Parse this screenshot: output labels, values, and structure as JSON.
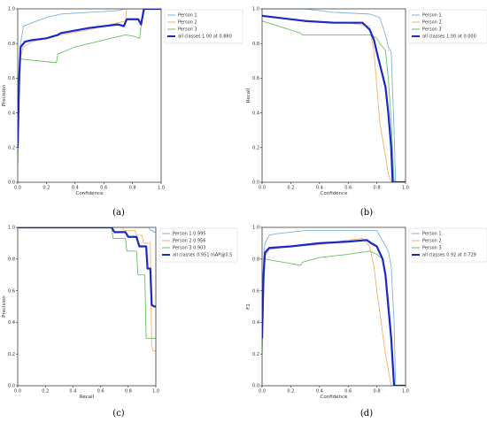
{
  "colors": {
    "person1": "#7fb2dc",
    "person2": "#f5b26b",
    "person3": "#6abf6a",
    "all": "#1a28c8"
  },
  "chart_data": [
    {
      "id": "a",
      "caption": "(a)",
      "type": "line",
      "xlabel": "Confidence",
      "ylabel": "Precision",
      "xlim": [
        0,
        1
      ],
      "ylim": [
        0,
        1
      ],
      "xticks": [
        "0.0",
        "0.2",
        "0.4",
        "0.6",
        "0.8",
        "1.0"
      ],
      "yticks": [
        "0.0",
        "0.2",
        "0.4",
        "0.6",
        "0.8",
        "1.0"
      ],
      "grid": false,
      "legend_position": "top-right",
      "series": [
        {
          "name": "Person 1",
          "color_key": "person1",
          "x": [
            0,
            0.01,
            0.02,
            0.04,
            0.1,
            0.2,
            0.3,
            0.5,
            0.7,
            0.75,
            0.76,
            0.9,
            1.0
          ],
          "y": [
            0.2,
            0.6,
            0.8,
            0.9,
            0.92,
            0.95,
            0.97,
            0.98,
            0.99,
            1.0,
            1.0,
            1.0,
            1.0
          ]
        },
        {
          "name": "Person 2",
          "color_key": "person2",
          "x": [
            0,
            0.01,
            0.02,
            0.04,
            0.1,
            0.2,
            0.3,
            0.5,
            0.7,
            0.75,
            0.76,
            0.9,
            1.0
          ],
          "y": [
            0.2,
            0.55,
            0.72,
            0.78,
            0.81,
            0.83,
            0.85,
            0.88,
            0.92,
            0.93,
            1.0,
            1.0,
            1.0
          ]
        },
        {
          "name": "Person 3",
          "color_key": "person3",
          "x": [
            0,
            0.01,
            0.02,
            0.27,
            0.28,
            0.4,
            0.6,
            0.75,
            0.82,
            0.85,
            0.86,
            0.88,
            0.9,
            1.0
          ],
          "y": [
            0.1,
            0.5,
            0.71,
            0.69,
            0.74,
            0.78,
            0.82,
            0.85,
            0.84,
            0.83,
            0.9,
            1.0,
            1.0,
            1.0
          ]
        },
        {
          "name": "all classes 1.00 at 0.880",
          "color_key": "all",
          "bold": true,
          "x": [
            0,
            0.01,
            0.02,
            0.05,
            0.1,
            0.2,
            0.28,
            0.3,
            0.5,
            0.7,
            0.74,
            0.76,
            0.84,
            0.86,
            0.88,
            1.0
          ],
          "y": [
            0.2,
            0.6,
            0.78,
            0.81,
            0.82,
            0.83,
            0.85,
            0.86,
            0.89,
            0.91,
            0.9,
            0.94,
            0.94,
            0.91,
            1.0,
            1.0
          ]
        }
      ]
    },
    {
      "id": "b",
      "caption": "(b)",
      "type": "line",
      "xlabel": "Confidence",
      "ylabel": "Recall",
      "xlim": [
        0,
        1
      ],
      "ylim": [
        0,
        1
      ],
      "xticks": [
        "0.0",
        "0.2",
        "0.4",
        "0.6",
        "0.8",
        "1.0"
      ],
      "yticks": [
        "0.0",
        "0.2",
        "0.4",
        "0.6",
        "0.8",
        "1.0"
      ],
      "grid": false,
      "legend_position": "top-right",
      "series": [
        {
          "name": "Person 1",
          "color_key": "person1",
          "x": [
            0,
            0.3,
            0.5,
            0.75,
            0.82,
            0.86,
            0.88,
            0.9,
            0.92,
            0.93,
            1.0
          ],
          "y": [
            1.0,
            1.0,
            0.98,
            0.97,
            0.95,
            0.85,
            0.78,
            0.75,
            0.3,
            0.0,
            0.0
          ],
          "comment": "points are approximate"
        },
        {
          "name": "Person 2",
          "color_key": "person2",
          "x": [
            0,
            0.3,
            0.6,
            0.75,
            0.78,
            0.8,
            0.82,
            0.84,
            0.86,
            0.88,
            0.9,
            1.0
          ],
          "y": [
            0.96,
            0.93,
            0.92,
            0.9,
            0.75,
            0.55,
            0.35,
            0.25,
            0.15,
            0.05,
            0.0,
            0.0
          ]
        },
        {
          "name": "Person 3",
          "color_key": "person3",
          "x": [
            0,
            0.27,
            0.28,
            0.5,
            0.75,
            0.78,
            0.8,
            0.82,
            0.84,
            0.86,
            0.88,
            0.9,
            0.92,
            1.0
          ],
          "y": [
            0.93,
            0.86,
            0.85,
            0.85,
            0.85,
            0.84,
            0.83,
            0.8,
            0.78,
            0.76,
            0.6,
            0.35,
            0.0,
            0.0
          ]
        },
        {
          "name": "all classes 1.00 at 0.000",
          "color_key": "all",
          "bold": true,
          "x": [
            0,
            0.1,
            0.3,
            0.5,
            0.7,
            0.75,
            0.78,
            0.8,
            0.83,
            0.86,
            0.88,
            0.9,
            0.91,
            1.0
          ],
          "y": [
            0.96,
            0.95,
            0.93,
            0.92,
            0.92,
            0.88,
            0.82,
            0.75,
            0.65,
            0.55,
            0.4,
            0.2,
            0.0,
            0.0
          ]
        }
      ]
    },
    {
      "id": "c",
      "caption": "(c)",
      "type": "line",
      "xlabel": "Recall",
      "ylabel": "Precision",
      "xlim": [
        0,
        1
      ],
      "ylim": [
        0,
        1
      ],
      "xticks": [
        "0.0",
        "0.2",
        "0.4",
        "0.6",
        "0.8",
        "1.0"
      ],
      "yticks": [
        "0.0",
        "0.2",
        "0.4",
        "0.6",
        "0.8",
        "1.0"
      ],
      "grid": false,
      "legend_position": "top-right",
      "series": [
        {
          "name": "Person 1 0.995",
          "color_key": "person1",
          "x": [
            0,
            0.5,
            0.9,
            0.95,
            0.96,
            0.98,
            0.98,
            1.0
          ],
          "y": [
            1.0,
            1.0,
            1.0,
            1.0,
            0.98,
            0.98,
            0.97,
            0.97
          ]
        },
        {
          "name": "Person 2 0.956",
          "color_key": "person2",
          "x": [
            0,
            0.5,
            0.76,
            0.77,
            0.85,
            0.86,
            0.9,
            0.91,
            0.96,
            0.97,
            0.98,
            1.0
          ],
          "y": [
            1.0,
            1.0,
            1.0,
            0.98,
            0.98,
            0.95,
            0.95,
            0.9,
            0.9,
            0.25,
            0.22,
            0.22
          ]
        },
        {
          "name": "Person 3 0.903",
          "color_key": "person3",
          "x": [
            0,
            0.5,
            0.68,
            0.69,
            0.78,
            0.79,
            0.86,
            0.87,
            0.92,
            0.93,
            0.98,
            1.0
          ],
          "y": [
            1.0,
            1.0,
            1.0,
            0.93,
            0.93,
            0.85,
            0.85,
            0.7,
            0.7,
            0.3,
            0.3,
            0.3
          ]
        },
        {
          "name": "all classes 0.951 mAP@0.5",
          "color_key": "all",
          "bold": true,
          "x": [
            0,
            0.5,
            0.68,
            0.7,
            0.78,
            0.8,
            0.86,
            0.88,
            0.93,
            0.94,
            0.96,
            0.97,
            0.99,
            1.0
          ],
          "y": [
            1.0,
            1.0,
            1.0,
            0.97,
            0.97,
            0.94,
            0.94,
            0.88,
            0.88,
            0.74,
            0.74,
            0.51,
            0.5,
            0.5
          ]
        }
      ]
    },
    {
      "id": "d",
      "caption": "(d)",
      "type": "line",
      "xlabel": "Confidence",
      "ylabel": "F1",
      "xlim": [
        0,
        1
      ],
      "ylim": [
        0,
        1
      ],
      "xticks": [
        "0.0",
        "0.2",
        "0.4",
        "0.6",
        "0.8",
        "1.0"
      ],
      "yticks": [
        "0.0",
        "0.2",
        "0.4",
        "0.6",
        "0.8",
        "1.0"
      ],
      "grid": false,
      "legend_position": "top-right",
      "series": [
        {
          "name": "Person 1",
          "color_key": "person1",
          "x": [
            0,
            0.01,
            0.02,
            0.05,
            0.1,
            0.3,
            0.5,
            0.7,
            0.8,
            0.85,
            0.88,
            0.9,
            0.92,
            0.93,
            1.0
          ],
          "y": [
            0.3,
            0.8,
            0.9,
            0.95,
            0.96,
            0.98,
            0.98,
            0.98,
            0.98,
            0.9,
            0.85,
            0.75,
            0.4,
            0.0,
            0.0
          ]
        },
        {
          "name": "Person 2",
          "color_key": "person2",
          "x": [
            0,
            0.01,
            0.02,
            0.05,
            0.2,
            0.4,
            0.6,
            0.7,
            0.75,
            0.78,
            0.8,
            0.83,
            0.86,
            0.9,
            1.0
          ],
          "y": [
            0.3,
            0.7,
            0.82,
            0.86,
            0.88,
            0.89,
            0.92,
            0.93,
            0.88,
            0.75,
            0.6,
            0.4,
            0.2,
            0.0,
            0.0
          ]
        },
        {
          "name": "Person 3",
          "color_key": "person3",
          "x": [
            0,
            0.01,
            0.02,
            0.27,
            0.28,
            0.4,
            0.6,
            0.75,
            0.8,
            0.84,
            0.86,
            0.88,
            0.9,
            0.92,
            1.0
          ],
          "y": [
            0.2,
            0.6,
            0.8,
            0.76,
            0.78,
            0.81,
            0.83,
            0.85,
            0.83,
            0.8,
            0.7,
            0.55,
            0.3,
            0.0,
            0.0
          ]
        },
        {
          "name": "all classes 0.92 at 0.729",
          "color_key": "all",
          "bold": true,
          "x": [
            0,
            0.01,
            0.02,
            0.05,
            0.2,
            0.4,
            0.6,
            0.73,
            0.76,
            0.8,
            0.84,
            0.86,
            0.88,
            0.9,
            0.92,
            1.0
          ],
          "y": [
            0.3,
            0.7,
            0.84,
            0.87,
            0.88,
            0.9,
            0.91,
            0.92,
            0.9,
            0.88,
            0.8,
            0.7,
            0.5,
            0.3,
            0.0,
            0.0
          ]
        }
      ]
    }
  ]
}
